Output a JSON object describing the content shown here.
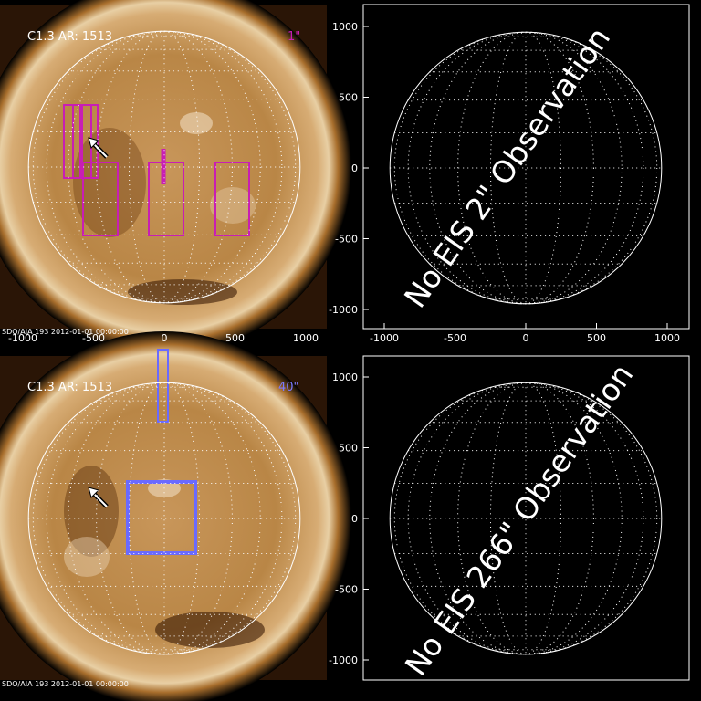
{
  "panels": [
    {
      "label": "C1.3 AR: 1513",
      "size": "1\"",
      "footer": "SDO/AIA  193   2012-01-01 00:00:00",
      "xticks": [
        -1000,
        -500,
        0,
        500,
        1000
      ]
    },
    {
      "message": "No EIS 2\" Observation",
      "xticks": [
        -1000,
        -500,
        0,
        500,
        1000
      ],
      "yticks": [
        1000,
        500,
        0,
        -500,
        -1000
      ]
    },
    {
      "label": "C1.3 AR: 1513",
      "size": "40\"",
      "footer": "SDO/AIA  193   2012-01-01 00:00:00"
    },
    {
      "message": "No EIS 266\" Observation",
      "yticks": [
        1000,
        500,
        0,
        -500,
        -1000
      ]
    }
  ]
}
